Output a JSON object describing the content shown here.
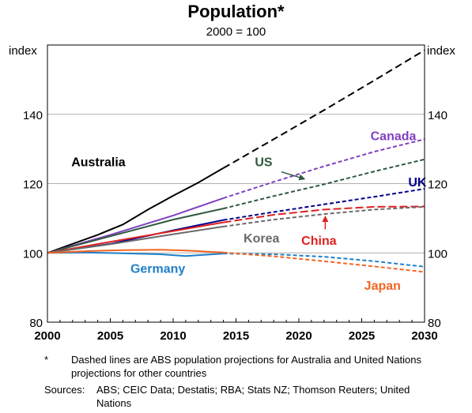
{
  "chart_data": {
    "type": "line",
    "title": "Population*",
    "subtitle": "2000 = 100",
    "ylabel_left": "index",
    "ylabel_right": "index",
    "xlim": [
      2000,
      2030
    ],
    "ylim": [
      80,
      160
    ],
    "yticks": [
      80,
      100,
      120,
      140
    ],
    "xticks": [
      2000,
      2005,
      2010,
      2015,
      2020,
      2025,
      2030
    ],
    "grid": true,
    "series": [
      {
        "name": "Australia",
        "color": "#000000",
        "actual": [
          [
            2000,
            100
          ],
          [
            2002,
            102.6
          ],
          [
            2004,
            105.2
          ],
          [
            2006,
            108.2
          ],
          [
            2008,
            112.5
          ],
          [
            2010,
            116.5
          ],
          [
            2012,
            120.3
          ],
          [
            2014,
            124.5
          ]
        ],
        "projection": [
          [
            2014,
            124.5
          ],
          [
            2018,
            132.8
          ],
          [
            2022,
            141.2
          ],
          [
            2026,
            149.8
          ],
          [
            2030,
            158.5
          ]
        ]
      },
      {
        "name": "Canada",
        "color": "#7f3fbf",
        "actual": [
          [
            2000,
            100
          ],
          [
            2005,
            105.2
          ],
          [
            2010,
            110.8
          ],
          [
            2014,
            115.8
          ]
        ],
        "projection": [
          [
            2014,
            115.8
          ],
          [
            2018,
            120.5
          ],
          [
            2022,
            125
          ],
          [
            2026,
            129.2
          ],
          [
            2030,
            132.8
          ]
        ]
      },
      {
        "name": "US",
        "color": "#2f5a3f",
        "actual": [
          [
            2000,
            100
          ],
          [
            2005,
            104.8
          ],
          [
            2010,
            109.6
          ],
          [
            2014,
            112.8
          ]
        ],
        "projection": [
          [
            2014,
            112.8
          ],
          [
            2018,
            116.4
          ],
          [
            2022,
            119.8
          ],
          [
            2026,
            123.5
          ],
          [
            2030,
            127
          ]
        ]
      },
      {
        "name": "UK",
        "color": "#00008b",
        "actual": [
          [
            2000,
            100
          ],
          [
            2005,
            102.6
          ],
          [
            2010,
            106.5
          ],
          [
            2014,
            109.5
          ]
        ],
        "projection": [
          [
            2014,
            109.5
          ],
          [
            2018,
            111.8
          ],
          [
            2022,
            114
          ],
          [
            2026,
            116.2
          ],
          [
            2030,
            118.5
          ]
        ]
      },
      {
        "name": "China",
        "color": "#e02020",
        "actual": [
          [
            2000,
            100
          ],
          [
            2005,
            103.2
          ],
          [
            2010,
            106.3
          ],
          [
            2014,
            108.8
          ]
        ],
        "projection": [
          [
            2014,
            108.8
          ],
          [
            2018,
            111
          ],
          [
            2022,
            112.5
          ],
          [
            2026,
            113.3
          ],
          [
            2030,
            113.4
          ]
        ]
      },
      {
        "name": "Korea",
        "color": "#6a6a6a",
        "actual": [
          [
            2000,
            100
          ],
          [
            2005,
            102.5
          ],
          [
            2010,
            105.4
          ],
          [
            2014,
            107.6
          ]
        ],
        "projection": [
          [
            2014,
            107.6
          ],
          [
            2018,
            109.6
          ],
          [
            2022,
            111.2
          ],
          [
            2026,
            112.5
          ],
          [
            2030,
            113.3
          ]
        ]
      },
      {
        "name": "Germany",
        "color": "#1f7fc8",
        "actual": [
          [
            2000,
            100
          ],
          [
            2003,
            100.1
          ],
          [
            2006,
            99.9
          ],
          [
            2009,
            99.6
          ],
          [
            2011,
            99.1
          ],
          [
            2014,
            99.8
          ]
        ],
        "projection": [
          [
            2014,
            99.8
          ],
          [
            2018,
            99.6
          ],
          [
            2022,
            98.9
          ],
          [
            2026,
            97.6
          ],
          [
            2030,
            96
          ]
        ]
      },
      {
        "name": "Japan",
        "color": "#f26522",
        "actual": [
          [
            2000,
            100
          ],
          [
            2003,
            100.5
          ],
          [
            2006,
            100.8
          ],
          [
            2009,
            100.9
          ],
          [
            2011,
            100.7
          ],
          [
            2014,
            100.1
          ]
        ],
        "projection": [
          [
            2014,
            100.1
          ],
          [
            2018,
            99
          ],
          [
            2022,
            97.6
          ],
          [
            2026,
            96.1
          ],
          [
            2030,
            94.5
          ]
        ]
      }
    ],
    "labels": [
      {
        "text": "Australia",
        "x": 2001.9,
        "y": 125,
        "color": "#000000"
      },
      {
        "text": "Canada",
        "x": 2025.7,
        "y": 132.5,
        "color": "#7f3fbf"
      },
      {
        "text": "US",
        "x": 2016.5,
        "y": 125,
        "color": "#2f5a3f"
      },
      {
        "text": "UK",
        "x": 2028.7,
        "y": 119.2,
        "color": "#00008b"
      },
      {
        "text": "Korea",
        "x": 2015.6,
        "y": 103,
        "color": "#6a6a6a"
      },
      {
        "text": "China",
        "x": 2020.2,
        "y": 102.3,
        "color": "#e02020"
      },
      {
        "text": "Germany",
        "x": 2006.6,
        "y": 94.2,
        "color": "#1f7fc8"
      },
      {
        "text": "Japan",
        "x": 2025.2,
        "y": 89.4,
        "color": "#f26522"
      }
    ],
    "arrows": [
      {
        "from": [
          2018.6,
          123.4
        ],
        "to": [
          2020.4,
          121.4
        ],
        "color": "#2f5a3f"
      },
      {
        "from": [
          2022.1,
          106.8
        ],
        "to": [
          2022.1,
          110.3
        ],
        "color": "#e02020"
      }
    ]
  },
  "notes": {
    "marker": "*",
    "text": "Dashed lines are ABS population projections for Australia and United Nations projections for other countries",
    "sources_label": "Sources:",
    "sources_text": "ABS; CEIC Data; Destatis; RBA; Stats NZ; Thomson Reuters; United Nations"
  }
}
